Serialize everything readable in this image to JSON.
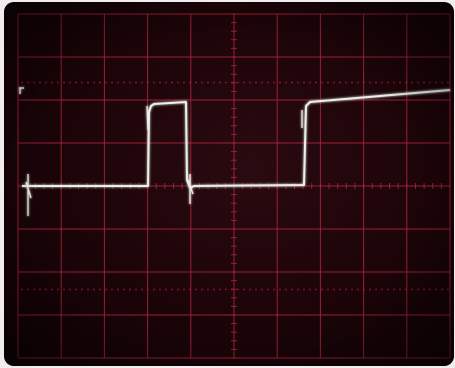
{
  "scene": {
    "subject": "oscilloscope-screen",
    "trace_color": "#e9f0e8",
    "graticule_color": "#b0243b",
    "screen_color": "#1b0408",
    "bezel_color": "#f2eded"
  },
  "graticule": {
    "divisions_x": 10,
    "divisions_y": 8
  }
}
